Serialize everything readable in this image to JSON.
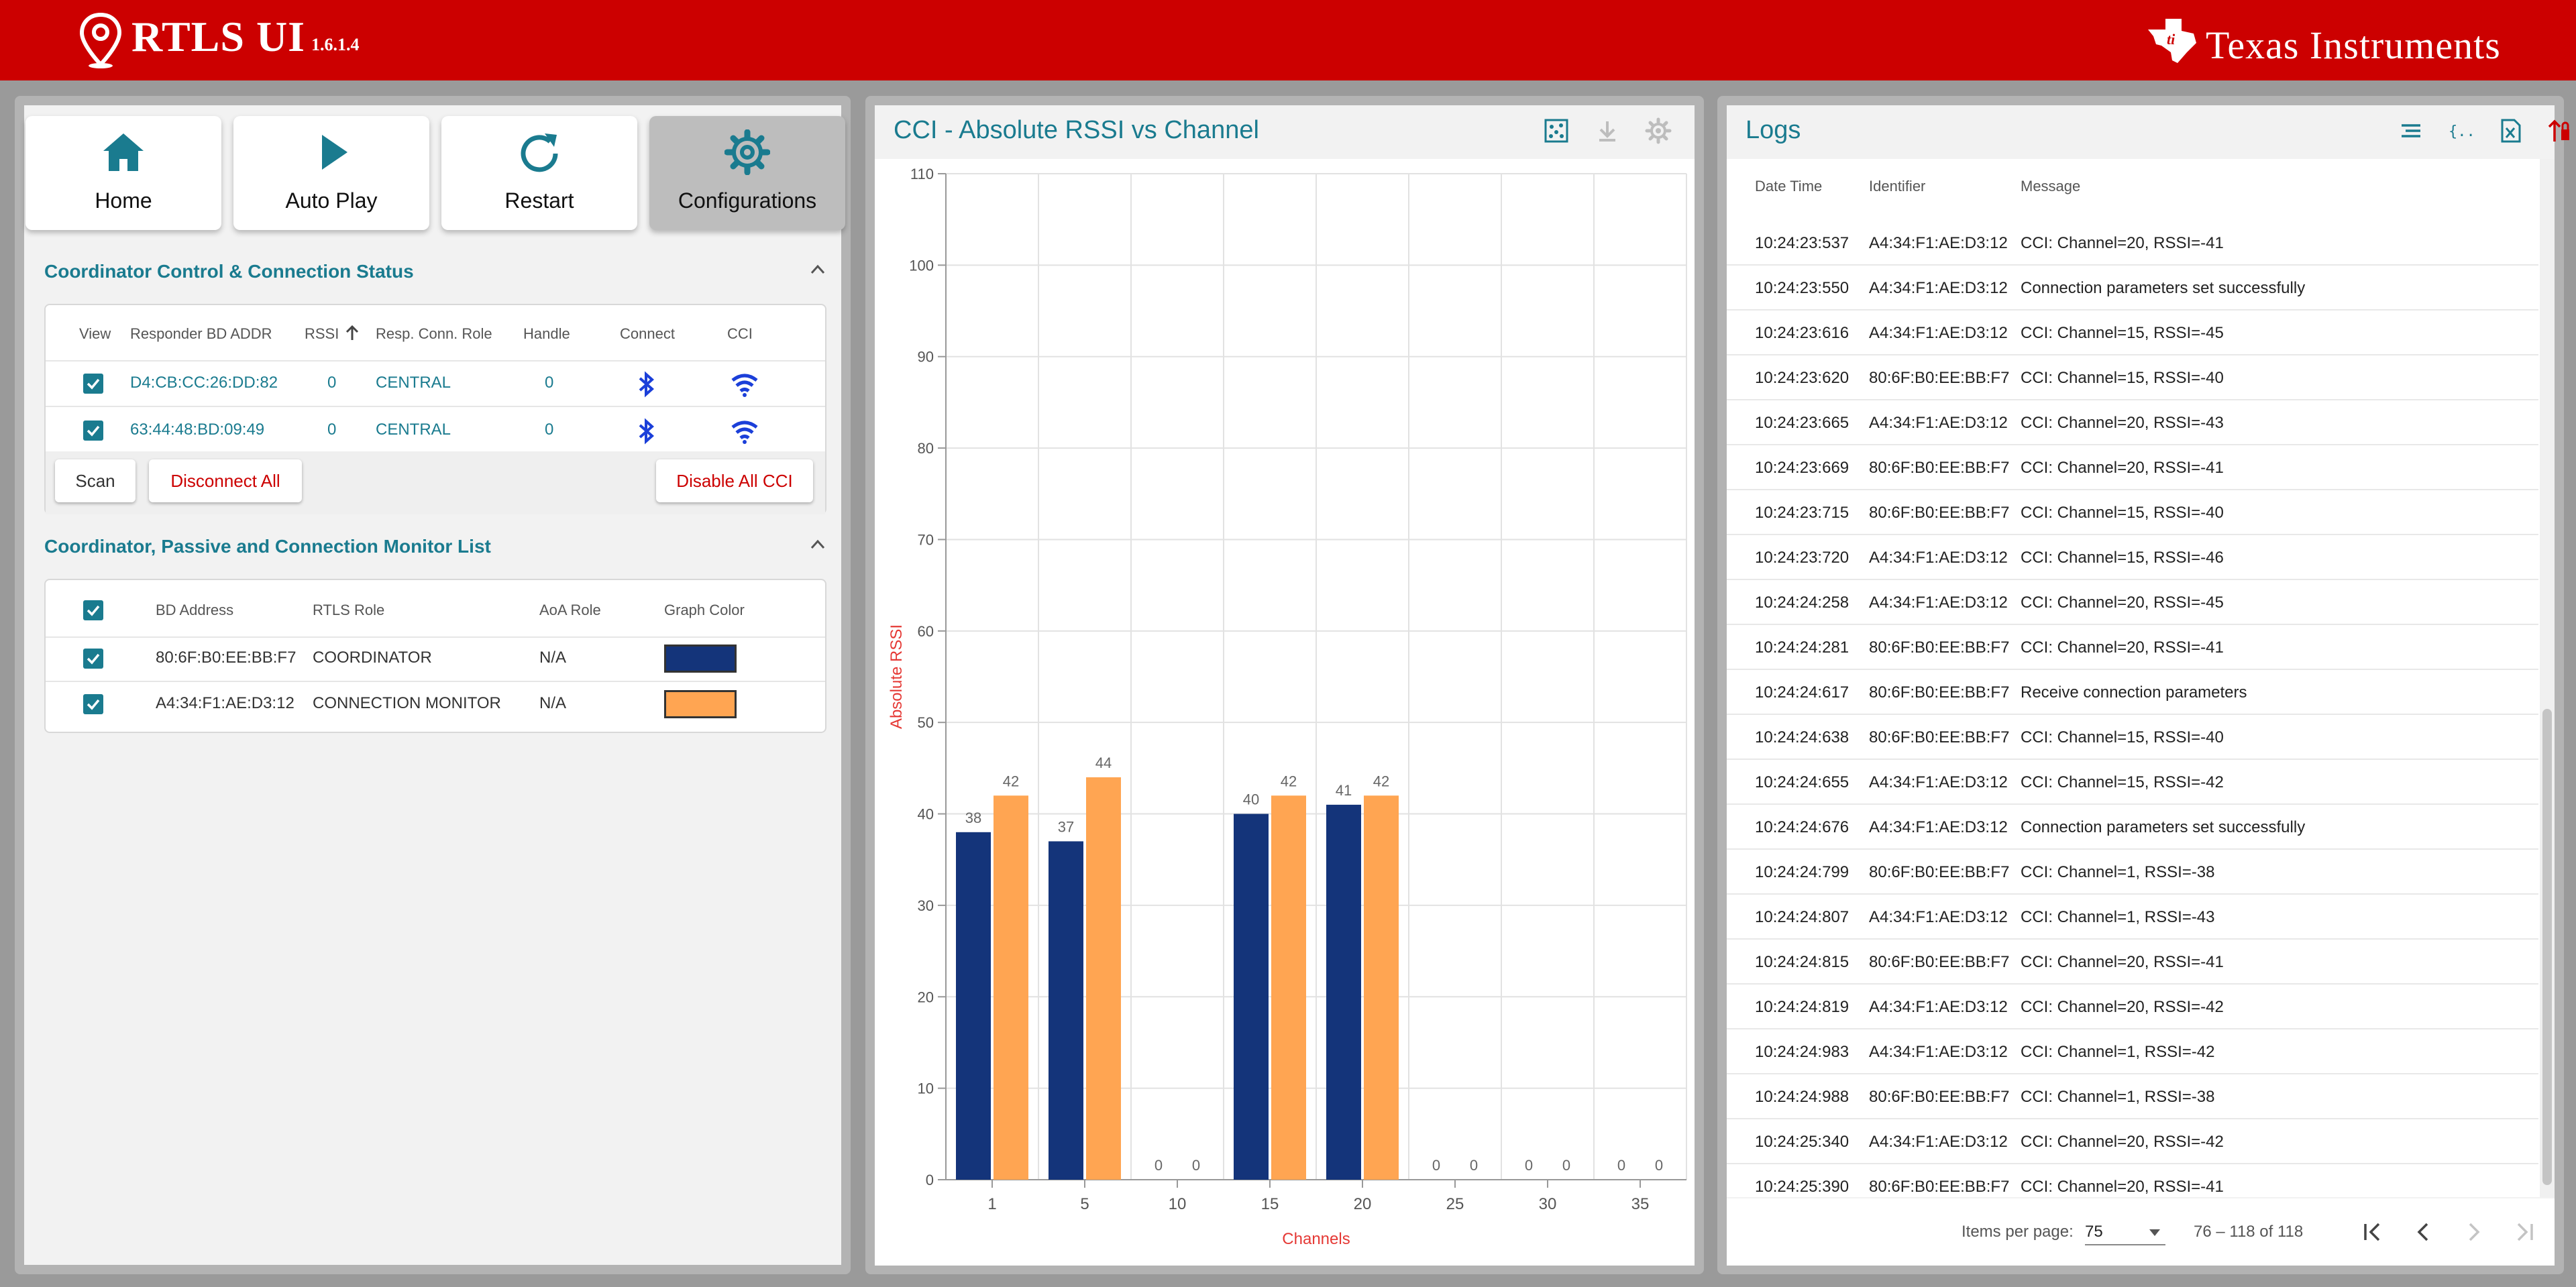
{
  "header": {
    "app_title": "RTLS UI",
    "app_version": "1.6.1.4",
    "vendor": "Texas Instruments",
    "bg_color": "#cc0000"
  },
  "nav": [
    {
      "label": "Home",
      "icon": "home-icon",
      "active": false
    },
    {
      "label": "Auto Play",
      "icon": "play-icon",
      "active": false
    },
    {
      "label": "Restart",
      "icon": "refresh-icon",
      "active": false
    },
    {
      "label": "Configurations",
      "icon": "gear-icon",
      "active": true
    }
  ],
  "coordinator_control": {
    "title": "Coordinator Control & Connection Status",
    "columns": [
      "View",
      "Responder BD ADDR",
      "RSSI",
      "Resp. Conn. Role",
      "Handle",
      "Connect",
      "CCI"
    ],
    "sort_column": "RSSI",
    "rows": [
      {
        "addr": "D4:CB:CC:26:DD:82",
        "rssi": "0",
        "role": "CENTRAL",
        "handle": "0"
      },
      {
        "addr": "63:44:48:BD:09:49",
        "rssi": "0",
        "role": "CENTRAL",
        "handle": "0"
      }
    ],
    "buttons": {
      "scan": "Scan",
      "disconnect_all": "Disconnect All",
      "disable_all_cci": "Disable All CCI"
    }
  },
  "monitor_list": {
    "title": "Coordinator, Passive and Connection Monitor List",
    "columns": [
      "BD Address",
      "RTLS Role",
      "AoA Role",
      "Graph Color"
    ],
    "rows": [
      {
        "addr": "80:6F:B0:EE:BB:F7",
        "role": "COORDINATOR",
        "aoa": "N/A",
        "color": "#14347a"
      },
      {
        "addr": "A4:34:F1:AE:D3:12",
        "role": "CONNECTION MONITOR",
        "aoa": "N/A",
        "color": "#ffa552"
      }
    ]
  },
  "chart_panel": {
    "title": "CCI - Absolute RSSI vs Channel",
    "icons": [
      "scatter-toggle-icon",
      "download-icon",
      "settings-icon"
    ]
  },
  "chart_data": {
    "type": "bar",
    "categories": [
      "1",
      "5",
      "10",
      "15",
      "20",
      "25",
      "30",
      "35"
    ],
    "series": [
      {
        "values": [
          38,
          37,
          0,
          40,
          41,
          0,
          0,
          0
        ],
        "color": "#14347a"
      },
      {
        "values": [
          42,
          44,
          0,
          42,
          42,
          0,
          0,
          0
        ],
        "color": "#ffa552"
      }
    ],
    "xlabel": "Channels",
    "ylabel": "Absolute RSSI",
    "ylim": [
      0,
      110
    ],
    "yticks": [
      0,
      10,
      20,
      30,
      40,
      50,
      60,
      70,
      80,
      90,
      100,
      110
    ],
    "grid": true,
    "axis_label_color": "#e53935"
  },
  "logs": {
    "title": "Logs",
    "icons": [
      "text-format-icon",
      "json-icon",
      "excel-icon",
      "sort-clear-icon"
    ],
    "columns": [
      "Date Time",
      "Identifier",
      "Message"
    ],
    "rows": [
      {
        "time": "10:24:23:537",
        "id": "A4:34:F1:AE:D3:12",
        "msg": "CCI: Channel=20, RSSI=-41"
      },
      {
        "time": "10:24:23:550",
        "id": "A4:34:F1:AE:D3:12",
        "msg": "Connection parameters set successfully"
      },
      {
        "time": "10:24:23:616",
        "id": "A4:34:F1:AE:D3:12",
        "msg": "CCI: Channel=15, RSSI=-45"
      },
      {
        "time": "10:24:23:620",
        "id": "80:6F:B0:EE:BB:F7",
        "msg": "CCI: Channel=15, RSSI=-40"
      },
      {
        "time": "10:24:23:665",
        "id": "A4:34:F1:AE:D3:12",
        "msg": "CCI: Channel=20, RSSI=-43"
      },
      {
        "time": "10:24:23:669",
        "id": "80:6F:B0:EE:BB:F7",
        "msg": "CCI: Channel=20, RSSI=-41"
      },
      {
        "time": "10:24:23:715",
        "id": "80:6F:B0:EE:BB:F7",
        "msg": "CCI: Channel=15, RSSI=-40"
      },
      {
        "time": "10:24:23:720",
        "id": "A4:34:F1:AE:D3:12",
        "msg": "CCI: Channel=15, RSSI=-46"
      },
      {
        "time": "10:24:24:258",
        "id": "A4:34:F1:AE:D3:12",
        "msg": "CCI: Channel=20, RSSI=-45"
      },
      {
        "time": "10:24:24:281",
        "id": "80:6F:B0:EE:BB:F7",
        "msg": "CCI: Channel=20, RSSI=-41"
      },
      {
        "time": "10:24:24:617",
        "id": "80:6F:B0:EE:BB:F7",
        "msg": "Receive connection parameters"
      },
      {
        "time": "10:24:24:638",
        "id": "80:6F:B0:EE:BB:F7",
        "msg": "CCI: Channel=15, RSSI=-40"
      },
      {
        "time": "10:24:24:655",
        "id": "A4:34:F1:AE:D3:12",
        "msg": "CCI: Channel=15, RSSI=-42"
      },
      {
        "time": "10:24:24:676",
        "id": "A4:34:F1:AE:D3:12",
        "msg": "Connection parameters set successfully"
      },
      {
        "time": "10:24:24:799",
        "id": "80:6F:B0:EE:BB:F7",
        "msg": "CCI: Channel=1, RSSI=-38"
      },
      {
        "time": "10:24:24:807",
        "id": "A4:34:F1:AE:D3:12",
        "msg": "CCI: Channel=1, RSSI=-43"
      },
      {
        "time": "10:24:24:815",
        "id": "80:6F:B0:EE:BB:F7",
        "msg": "CCI: Channel=20, RSSI=-41"
      },
      {
        "time": "10:24:24:819",
        "id": "A4:34:F1:AE:D3:12",
        "msg": "CCI: Channel=20, RSSI=-42"
      },
      {
        "time": "10:24:24:983",
        "id": "A4:34:F1:AE:D3:12",
        "msg": "CCI: Channel=1, RSSI=-42"
      },
      {
        "time": "10:24:24:988",
        "id": "80:6F:B0:EE:BB:F7",
        "msg": "CCI: Channel=1, RSSI=-38"
      },
      {
        "time": "10:24:25:340",
        "id": "A4:34:F1:AE:D3:12",
        "msg": "CCI: Channel=20, RSSI=-42"
      },
      {
        "time": "10:24:25:390",
        "id": "80:6F:B0:EE:BB:F7",
        "msg": "CCI: Channel=20, RSSI=-41"
      }
    ],
    "pager": {
      "items_per_page_label": "Items per page:",
      "items_per_page": "75",
      "range": "76 – 118 of 118"
    }
  }
}
